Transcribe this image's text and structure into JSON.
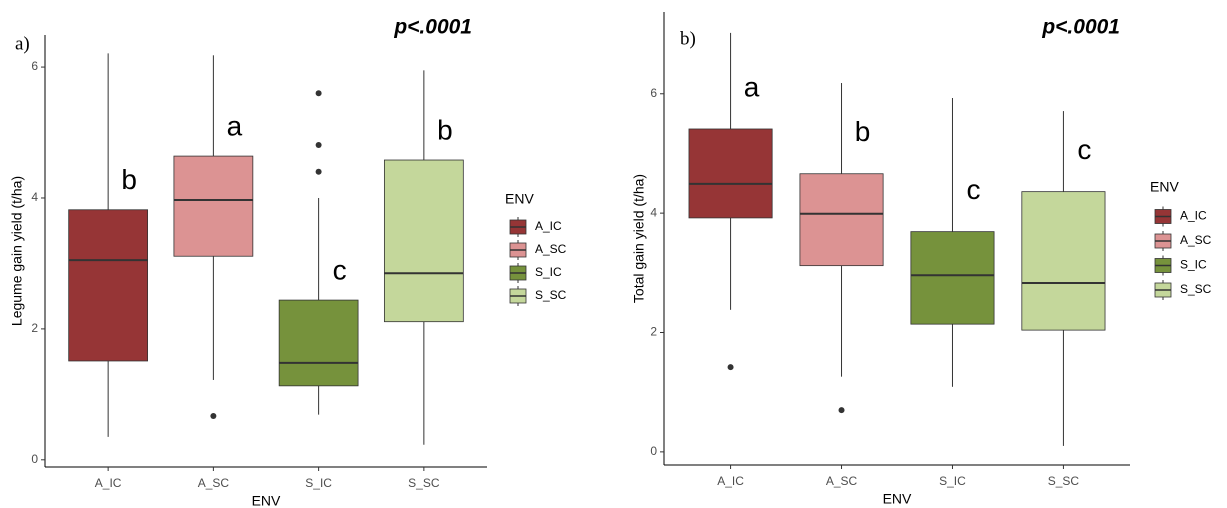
{
  "chart_data": [
    {
      "type": "box",
      "panel_label": "a)",
      "title": "p<.0001",
      "xlabel": "ENV",
      "ylabel": "Legume gain yield (t/ha)",
      "legend_title": "ENV",
      "categories": [
        "A_IC",
        "A_SC",
        "S_IC",
        "S_SC"
      ],
      "colors": [
        "#963536",
        "#dc9393",
        "#76923c",
        "#c4d79b"
      ],
      "boxes": [
        {
          "min": 0.35,
          "q1": 1.51,
          "median": 3.05,
          "q3": 3.82,
          "max": 6.21,
          "outliers": []
        },
        {
          "min": 1.22,
          "q1": 3.11,
          "median": 3.97,
          "q3": 4.64,
          "max": 6.18,
          "outliers": [
            0.67
          ]
        },
        {
          "min": 0.69,
          "q1": 1.13,
          "median": 1.48,
          "q3": 2.44,
          "max": 4.0,
          "outliers": [
            5.6,
            4.81,
            4.4
          ]
        },
        {
          "min": 0.23,
          "q1": 2.11,
          "median": 2.85,
          "q3": 4.58,
          "max": 5.95,
          "outliers": []
        }
      ],
      "annotations": [
        "b",
        "a",
        "c",
        "b"
      ],
      "ylim": [
        -0.11,
        6.49
      ],
      "yticks": [
        0,
        2,
        4,
        6
      ]
    },
    {
      "type": "box",
      "panel_label": "b)",
      "title": "p<.0001",
      "xlabel": "ENV",
      "ylabel": "Total gain yield (t/ha)",
      "legend_title": "ENV",
      "categories": [
        "A_IC",
        "A_SC",
        "S_IC",
        "S_SC"
      ],
      "colors": [
        "#963536",
        "#dc9393",
        "#76923c",
        "#c4d79b"
      ],
      "boxes": [
        {
          "min": 2.38,
          "q1": 3.92,
          "median": 4.49,
          "q3": 5.41,
          "max": 7.02,
          "outliers": [
            1.42
          ]
        },
        {
          "min": 1.26,
          "q1": 3.12,
          "median": 3.99,
          "q3": 4.66,
          "max": 6.18,
          "outliers": [
            0.7
          ]
        },
        {
          "min": 1.09,
          "q1": 2.14,
          "median": 2.96,
          "q3": 3.69,
          "max": 5.93,
          "outliers": []
        },
        {
          "min": 0.1,
          "q1": 2.04,
          "median": 2.83,
          "q3": 4.36,
          "max": 5.71,
          "outliers": []
        }
      ],
      "annotations": [
        "a",
        "b",
        "c",
        "c"
      ],
      "ylim": [
        -0.22,
        7.37
      ],
      "yticks": [
        0,
        2,
        4,
        6
      ]
    }
  ]
}
